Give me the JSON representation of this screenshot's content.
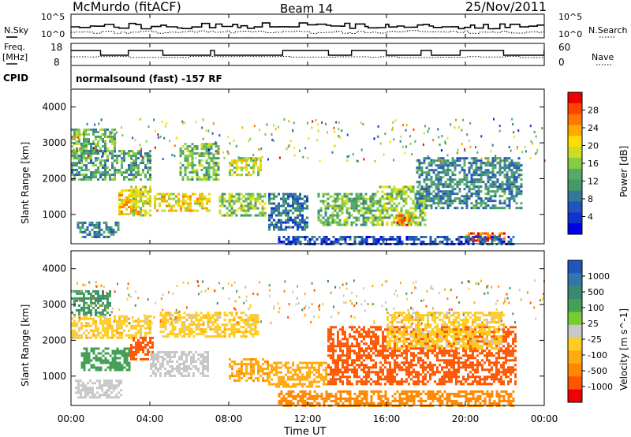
{
  "header": {
    "station": "McMurdo (fitACF)",
    "beam": "Beam 14",
    "date": "25/Nov/2011"
  },
  "strip_noise": {
    "left_label": "N.Sky",
    "left_ticks": [
      "10^5",
      "10^0"
    ],
    "right_label": "N.Search",
    "right_ticks": [
      "10^5",
      "10^0"
    ]
  },
  "strip_freq": {
    "left_label_1": "Freq.",
    "left_label_2": "[MHz]",
    "left_ticks": [
      "18",
      "8"
    ],
    "right_label": "Nave",
    "right_ticks": [
      "60",
      "0"
    ]
  },
  "cpid": {
    "label": "CPID",
    "text": "normalsound (fast) -157 RF"
  },
  "colorbars": {
    "power": {
      "label": "Power [dB]",
      "ticks": [
        "28",
        "24",
        "20",
        "16",
        "12",
        "8",
        "4"
      ],
      "colors": [
        "#ee0000",
        "#ff4400",
        "#ff7700",
        "#ffaa00",
        "#ffdd00",
        "#ccdd22",
        "#88cc44",
        "#55aa66",
        "#449966",
        "#337799",
        "#2255bb",
        "#1133cc",
        "#0000ee"
      ]
    },
    "velocity": {
      "label": "Velocity [m s^-1]",
      "ticks": [
        "1000",
        "500",
        "100",
        "25",
        "-25",
        "-100",
        "-500",
        "-1000"
      ],
      "colors": [
        "#2255bb",
        "#3377aa",
        "#3a8a70",
        "#44a055",
        "#77cc33",
        "#c8c8c8",
        "#ffcc22",
        "#ffaa11",
        "#ff8800",
        "#ff5500",
        "#ee0000"
      ]
    }
  },
  "chart_data": [
    {
      "type": "heatmap",
      "name": "power",
      "ylabel": "Slant Range [km]",
      "yticks": [
        "4000",
        "3000",
        "2000",
        "1000"
      ],
      "ylim": [
        180,
        4500
      ],
      "xlim": [
        "00:00",
        "24:00"
      ],
      "clim_db": [
        0,
        32
      ],
      "description_units": "dB",
      "bands": [
        {
          "t0": 0.0,
          "t1": 2.2,
          "r0": 2700,
          "r1": 3400,
          "value": 14
        },
        {
          "t0": 0.0,
          "t1": 4.0,
          "r0": 2000,
          "r1": 2800,
          "value": 12
        },
        {
          "t0": 0.3,
          "t1": 2.4,
          "r0": 400,
          "r1": 800,
          "value": 10
        },
        {
          "t0": 2.4,
          "t1": 3.4,
          "r0": 1000,
          "r1": 1700,
          "value": 22
        },
        {
          "t0": 3.0,
          "t1": 4.0,
          "r0": 1000,
          "r1": 1800,
          "value": 18
        },
        {
          "t0": 4.2,
          "t1": 7.0,
          "r0": 1100,
          "r1": 1600,
          "value": 20
        },
        {
          "t0": 5.5,
          "t1": 7.5,
          "r0": 2000,
          "r1": 3000,
          "value": 14
        },
        {
          "t0": 7.5,
          "t1": 9.8,
          "r0": 1000,
          "r1": 1600,
          "value": 16
        },
        {
          "t0": 8.0,
          "t1": 9.6,
          "r0": 2100,
          "r1": 2600,
          "value": 18
        },
        {
          "t0": 10.0,
          "t1": 12.0,
          "r0": 600,
          "r1": 1600,
          "value": 8
        },
        {
          "t0": 12.5,
          "t1": 15.5,
          "r0": 700,
          "r1": 1600,
          "value": 14
        },
        {
          "t0": 15.5,
          "t1": 18.0,
          "r0": 700,
          "r1": 1800,
          "value": 16
        },
        {
          "t0": 16.5,
          "t1": 17.2,
          "r0": 700,
          "r1": 1000,
          "value": 26
        },
        {
          "t0": 17.5,
          "t1": 22.8,
          "r0": 1200,
          "r1": 2600,
          "value": 10
        },
        {
          "t0": 20.0,
          "t1": 22.0,
          "r0": 250,
          "r1": 500,
          "value": 28
        },
        {
          "t0": 10.5,
          "t1": 22.5,
          "r0": 200,
          "r1": 400,
          "value": 6
        }
      ]
    },
    {
      "type": "heatmap",
      "name": "velocity",
      "ylabel": "Slant Range [km]",
      "yticks": [
        "4000",
        "3000",
        "2000",
        "1000"
      ],
      "ylim": [
        180,
        4500
      ],
      "xlim": [
        "00:00",
        "24:00"
      ],
      "xticks": [
        "00:00",
        "04:00",
        "08:00",
        "12:00",
        "16:00",
        "20:00",
        "00:00"
      ],
      "xlabel": "Time UT",
      "clim_ms": [
        -1000,
        1000
      ],
      "bands": [
        {
          "t0": 0.0,
          "t1": 2.0,
          "r0": 2700,
          "r1": 3400,
          "value": 500
        },
        {
          "t0": 0.0,
          "t1": 4.0,
          "r0": 2100,
          "r1": 2700,
          "value": 0
        },
        {
          "t0": 0.2,
          "t1": 2.6,
          "r0": 400,
          "r1": 900,
          "value": 60
        },
        {
          "t0": 0.5,
          "t1": 3.0,
          "r0": 1200,
          "r1": 1800,
          "value": 300
        },
        {
          "t0": 3.0,
          "t1": 4.2,
          "r0": 1500,
          "r1": 2100,
          "value": -300
        },
        {
          "t0": 4.0,
          "t1": 7.0,
          "r0": 1000,
          "r1": 1700,
          "value": 60
        },
        {
          "t0": 4.5,
          "t1": 9.5,
          "r0": 2100,
          "r1": 2800,
          "value": 0
        },
        {
          "t0": 8.0,
          "t1": 10.0,
          "r0": 900,
          "r1": 1500,
          "value": -80
        },
        {
          "t0": 10.0,
          "t1": 13.0,
          "r0": 700,
          "r1": 1400,
          "value": -60
        },
        {
          "t0": 13.0,
          "t1": 22.5,
          "r0": 800,
          "r1": 2400,
          "value": -400
        },
        {
          "t0": 16.0,
          "t1": 22.0,
          "r0": 1800,
          "r1": 2800,
          "value": 0
        },
        {
          "t0": 10.5,
          "t1": 22.5,
          "r0": 200,
          "r1": 600,
          "value": -150
        }
      ]
    }
  ]
}
